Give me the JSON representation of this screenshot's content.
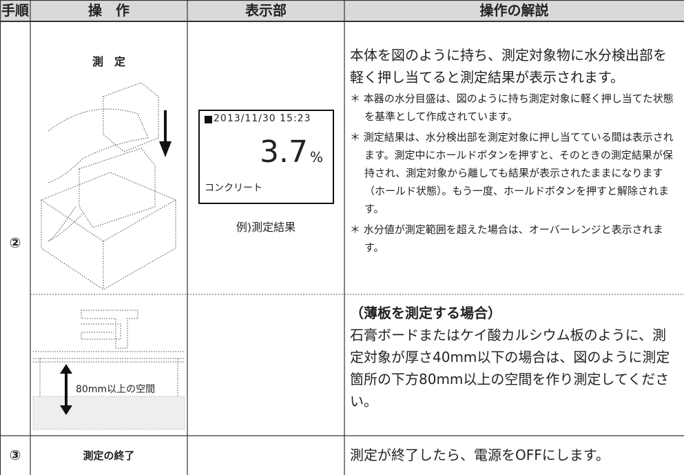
{
  "header": [
    "手順",
    "操　作",
    "表示部",
    "操作の解説"
  ],
  "step2": {
    "label": "②",
    "operation": "測　定",
    "display": {
      "date": "2013/11/30 15:23",
      "value": "3.7",
      "unit": "%",
      "material": "コンクリート",
      "caption": "例)測定結果"
    },
    "explanation": "本体を図のように持ち、測定対象物に水分検出部を軽く押し当てると測定結果が表示されます。",
    "notes": [
      "＊ 本器の水分目盛は、図のように持ち測定対象に軽く押し当てた状態を基準として作成されています。",
      "＊ 測定結果は、水分検出部を測定対象に押し当てている間は表示されます。測定中にホールドボタンを押すと、そのときの測定結果が保持され、測定対象から離しても結果が表示されたままになります（ホールド状態）。もう一度、ホールドボタンを押すと解除されます。",
      "＊ 水分値が測定範囲を超えた場合は、オーバーレンジと表示されます。"
    ],
    "thin": {
      "space_label": "80mm以上の空間",
      "title": "（薄板を測定する場合）",
      "body": "石膏ボードまたはケイ酸カルシウム板のように、測定対象が厚さ40mm以下の場合は、図のように測定箇所の下方80mm以上の空間を作り測定してください。"
    }
  },
  "step3": {
    "label": "③",
    "operation": "測定の終了",
    "explanation": "測定が終了したら、電源をOFFにします。"
  }
}
